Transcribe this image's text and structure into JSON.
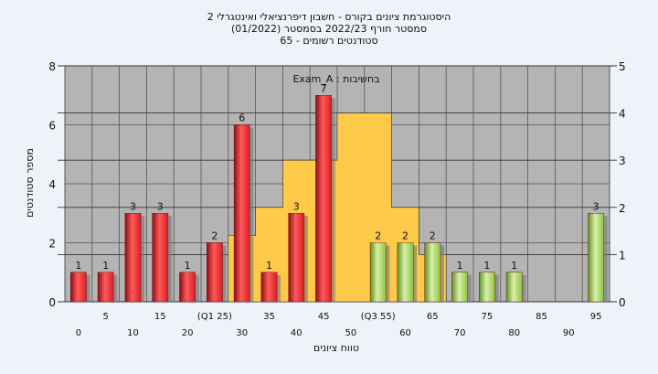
{
  "chart_data": {
    "type": "bar",
    "title": "היסטוגרמת ציונים בקורס - חשבון דיפרנציאלי ואינטגרלי 2",
    "subtitle_lines": [
      "(01/2022)  סמסטר חורף 2022/23 בסמסטר",
      "סטודנטים רשומים - 65"
    ],
    "annotation": "Exam_A : בחשיבות",
    "xlabel": "טווח ציונים",
    "ylabel": "מספר סטודנטים",
    "ylim": [
      0,
      8
    ],
    "yticks": [
      0,
      2,
      4,
      6,
      8
    ],
    "y2lim": [
      0,
      5
    ],
    "y2ticks": [
      0,
      1,
      2,
      3,
      4,
      5
    ],
    "categories": [
      "0",
      "5",
      "10",
      "15",
      "20",
      "25",
      "30",
      "35",
      "40",
      "45",
      "50",
      "55",
      "60",
      "65",
      "70",
      "75",
      "80",
      "85",
      "90",
      "95"
    ],
    "values": [
      1,
      1,
      3,
      3,
      1,
      2,
      6,
      1,
      3,
      7,
      0,
      2,
      2,
      2,
      1,
      1,
      1,
      0,
      0,
      3
    ],
    "bar_colors": [
      "red",
      "red",
      "red",
      "red",
      "red",
      "red",
      "red",
      "red",
      "red",
      "red",
      "red",
      "green",
      "green",
      "green",
      "green",
      "green",
      "green",
      "green",
      "green",
      "green"
    ],
    "x_tick_labels": [
      "0",
      "5",
      "10",
      "15",
      "20",
      "(Q1 25)",
      "30",
      "35",
      "40",
      "45",
      "50",
      "(Q3 55)",
      "60",
      "65",
      "70",
      "75",
      "80",
      "85",
      "90",
      "95"
    ],
    "iqr_band": {
      "y2": [
        0,
        0,
        0,
        0,
        0,
        0,
        1.4,
        2,
        3,
        3,
        4,
        4,
        2,
        1,
        0
      ]
    },
    "colors": {
      "red": "#d81f26",
      "green": "#8cc63f",
      "band": "#ffc94a",
      "plot_bg": "#b4b4b4",
      "page_bg": "#eef2f9"
    }
  }
}
